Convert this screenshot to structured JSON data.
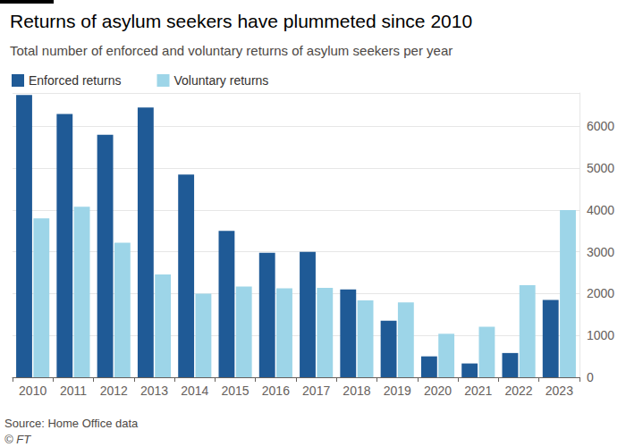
{
  "chart_data": {
    "type": "bar",
    "title": "Returns of asylum seekers have plummeted since 2010",
    "subtitle": "Total number of enforced and voluntary returns of asylum seekers per year",
    "source": "Source: Home Office data",
    "credit": "© FT",
    "categories": [
      "2010",
      "2011",
      "2012",
      "2013",
      "2014",
      "2015",
      "2016",
      "2017",
      "2018",
      "2019",
      "2020",
      "2021",
      "2022",
      "2023"
    ],
    "series": [
      {
        "name": "Enforced returns",
        "color": "#1f5a96",
        "values": [
          6750,
          6300,
          5800,
          6450,
          4850,
          3500,
          2980,
          3000,
          2100,
          1350,
          500,
          330,
          580,
          1850
        ]
      },
      {
        "name": "Voluntary returns",
        "color": "#9dd5e8",
        "values": [
          3800,
          4080,
          3220,
          2460,
          2000,
          2170,
          2130,
          2140,
          1840,
          1790,
          1040,
          1210,
          2200,
          4000
        ]
      }
    ],
    "ylim": [
      0,
      6800
    ],
    "yticks": [
      0,
      1000,
      2000,
      3000,
      4000,
      5000,
      6000
    ],
    "grid": true,
    "legend": "top-left"
  }
}
